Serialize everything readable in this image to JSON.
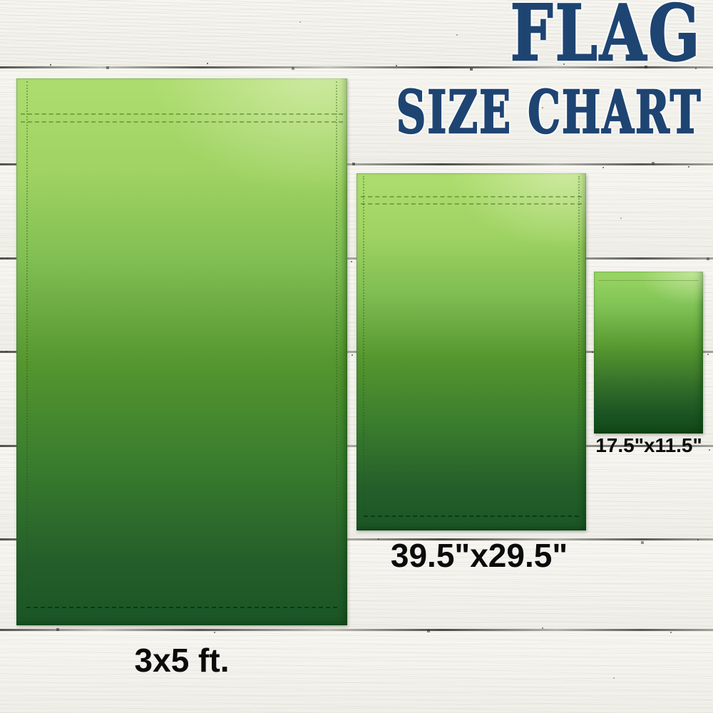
{
  "title": {
    "line1": "FLAG",
    "line2": "SIZE CHART",
    "color": "#1e4472"
  },
  "flags": [
    {
      "id": "large",
      "label": "3x5 ft.",
      "size_value": "3x5 ft"
    },
    {
      "id": "medium",
      "label": "39.5\"x29.5\"",
      "size_value": "39.5 x 29.5 in"
    },
    {
      "id": "small",
      "label": "17.5\"x11.5\"",
      "size_value": "17.5 x 11.5 in"
    }
  ],
  "colors": {
    "background_wood": "#f4f3ee",
    "plank_line": "#3a3a35",
    "label_text": "#0b0b0b",
    "flag_gradient_top": "#aedd6f",
    "flag_gradient_mid": "#55962f",
    "flag_gradient_bottom": "#1a5526"
  }
}
